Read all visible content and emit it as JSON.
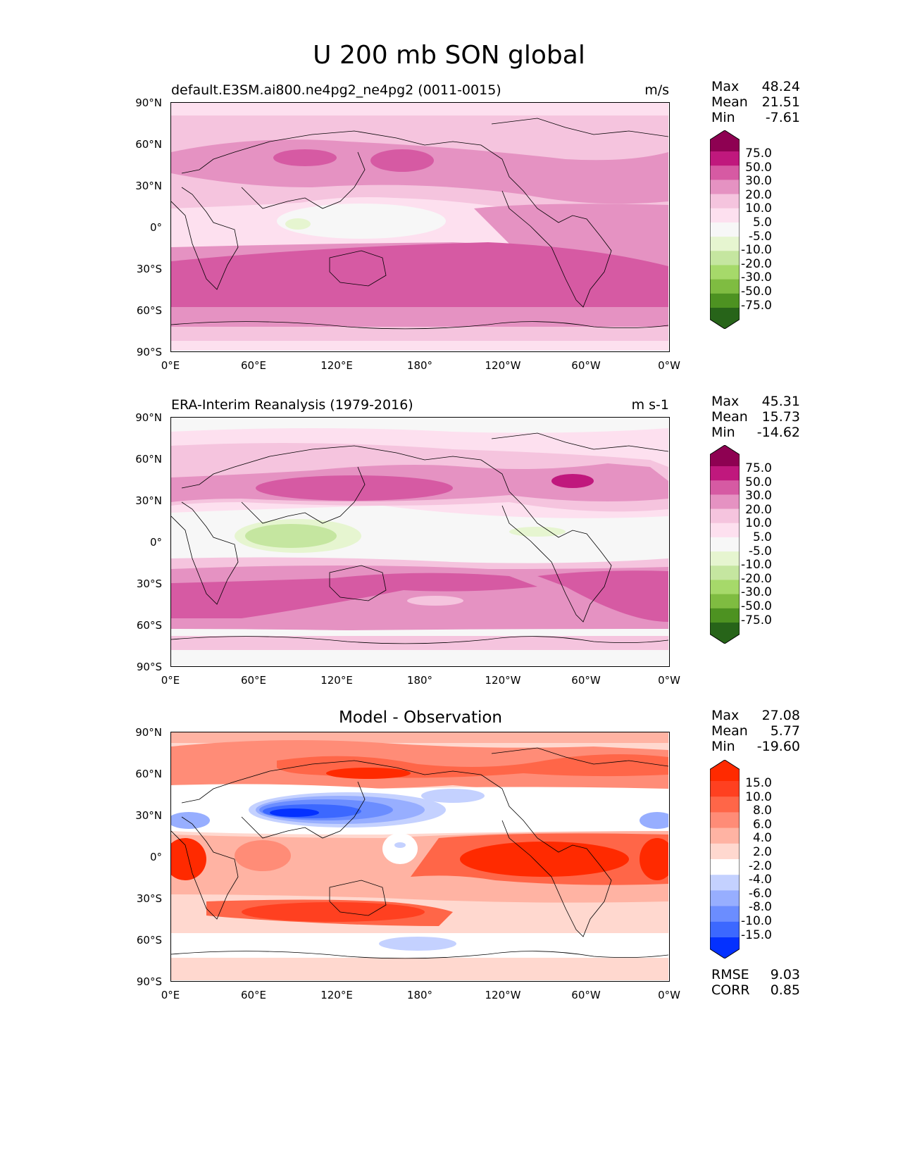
{
  "figure": {
    "title": "U 200 mb SON global"
  },
  "colors": {
    "pink_scale": [
      "#276419",
      "#4d9221",
      "#7fbc41",
      "#a6d96a",
      "#c5e6a0",
      "#e6f5d0",
      "#f7f7f7",
      "#fde0ef",
      "#f5c4de",
      "#e592c2",
      "#d65aa3",
      "#c0187d",
      "#8e0152"
    ],
    "diff_scale": [
      "#0431ff",
      "#3c68ff",
      "#6b8dff",
      "#97aeff",
      "#c4d1ff",
      "#ffffff",
      "#ffd8cf",
      "#ffb3a3",
      "#ff8c77",
      "#ff6648",
      "#ff4020",
      "#ff2a00"
    ]
  },
  "panels": [
    {
      "title_left": "default.E3SM.ai800.ne4pg2_ne4pg2 (0011-0015)",
      "title_right": "m/s",
      "stats": [
        {
          "label": "Max",
          "value": "48.24"
        },
        {
          "label": "Mean",
          "value": "21.51"
        },
        {
          "label": "Min",
          "value": "-7.61"
        }
      ]
    },
    {
      "title_left": "ERA-Interim Reanalysis (1979-2016)",
      "title_right": "m s-1",
      "stats": [
        {
          "label": "Max",
          "value": "45.31"
        },
        {
          "label": "Mean",
          "value": "15.73"
        },
        {
          "label": "Min",
          "value": "-14.62"
        }
      ]
    },
    {
      "title_center": "Model - Observation",
      "stats": [
        {
          "label": "Max",
          "value": "27.08"
        },
        {
          "label": "Mean",
          "value": "5.77"
        },
        {
          "label": "Min",
          "value": "-19.60"
        }
      ],
      "metrics": [
        {
          "label": "RMSE",
          "value": "9.03"
        },
        {
          "label": "CORR",
          "value": "0.85"
        }
      ]
    }
  ],
  "chart_data": [
    {
      "type": "heatmap",
      "title": "default.E3SM.ai800.ne4pg2_ne4pg2 (0011-0015)",
      "units": "m/s",
      "x_ticks": [
        "0°E",
        "60°E",
        "120°E",
        "180°",
        "120°W",
        "60°W",
        "0°W"
      ],
      "y_ticks": [
        "90°N",
        "60°N",
        "30°N",
        "0°",
        "30°S",
        "60°S",
        "90°S"
      ],
      "levels": [
        "75.0",
        "50.0",
        "30.0",
        "20.0",
        "10.0",
        "5.0",
        "-5.0",
        "-10.0",
        "-20.0",
        "-30.0",
        "-50.0",
        "-75.0"
      ],
      "zonal_mean_bands": [
        {
          "lat_range": [
            70,
            90
          ],
          "value": 5
        },
        {
          "lat_range": [
            45,
            70
          ],
          "value": 18
        },
        {
          "lat_range": [
            20,
            45
          ],
          "value": 28
        },
        {
          "lat_range": [
            -8,
            20
          ],
          "value": 4
        },
        {
          "lat_range": [
            -25,
            -8
          ],
          "value": 22
        },
        {
          "lat_range": [
            -55,
            -25
          ],
          "value": 35
        },
        {
          "lat_range": [
            -72,
            -55
          ],
          "value": 22
        },
        {
          "lat_range": [
            -90,
            -72
          ],
          "value": 8
        }
      ]
    },
    {
      "type": "heatmap",
      "title": "ERA-Interim Reanalysis (1979-2016)",
      "units": "m s-1",
      "x_ticks": [
        "0°E",
        "60°E",
        "120°E",
        "180°",
        "120°W",
        "60°W",
        "0°W"
      ],
      "y_ticks": [
        "90°N",
        "60°N",
        "30°N",
        "0°",
        "30°S",
        "60°S",
        "90°S"
      ],
      "levels": [
        "75.0",
        "50.0",
        "30.0",
        "20.0",
        "10.0",
        "5.0",
        "-5.0",
        "-10.0",
        "-20.0",
        "-30.0",
        "-50.0",
        "-75.0"
      ],
      "zonal_mean_bands": [
        {
          "lat_range": [
            75,
            90
          ],
          "value": 0
        },
        {
          "lat_range": [
            50,
            75
          ],
          "value": 12
        },
        {
          "lat_range": [
            20,
            50
          ],
          "value": 26
        },
        {
          "lat_range": [
            -10,
            20
          ],
          "value": -2
        },
        {
          "lat_range": [
            -25,
            -10
          ],
          "value": 15
        },
        {
          "lat_range": [
            -55,
            -25
          ],
          "value": 32
        },
        {
          "lat_range": [
            -72,
            -55
          ],
          "value": 20
        },
        {
          "lat_range": [
            -90,
            -72
          ],
          "value": 2
        }
      ]
    },
    {
      "type": "heatmap",
      "title": "Model - Observation",
      "x_ticks": [
        "0°E",
        "60°E",
        "120°E",
        "180°",
        "120°W",
        "60°W",
        "0°W"
      ],
      "y_ticks": [
        "90°N",
        "60°N",
        "30°N",
        "0°",
        "30°S",
        "60°S",
        "90°S"
      ],
      "levels": [
        "15.0",
        "10.0",
        "8.0",
        "6.0",
        "4.0",
        "2.0",
        "-2.0",
        "-4.0",
        "-6.0",
        "-8.0",
        "-10.0",
        "-15.0"
      ],
      "zonal_mean_bands": [
        {
          "lat_range": [
            60,
            90
          ],
          "value": 8
        },
        {
          "lat_range": [
            35,
            60
          ],
          "value": 4
        },
        {
          "lat_range": [
            20,
            35
          ],
          "value": -6
        },
        {
          "lat_range": [
            -15,
            20
          ],
          "value": 10
        },
        {
          "lat_range": [
            -45,
            -15
          ],
          "value": 6
        },
        {
          "lat_range": [
            -65,
            -45
          ],
          "value": 1
        },
        {
          "lat_range": [
            -90,
            -65
          ],
          "value": 4
        }
      ]
    }
  ]
}
